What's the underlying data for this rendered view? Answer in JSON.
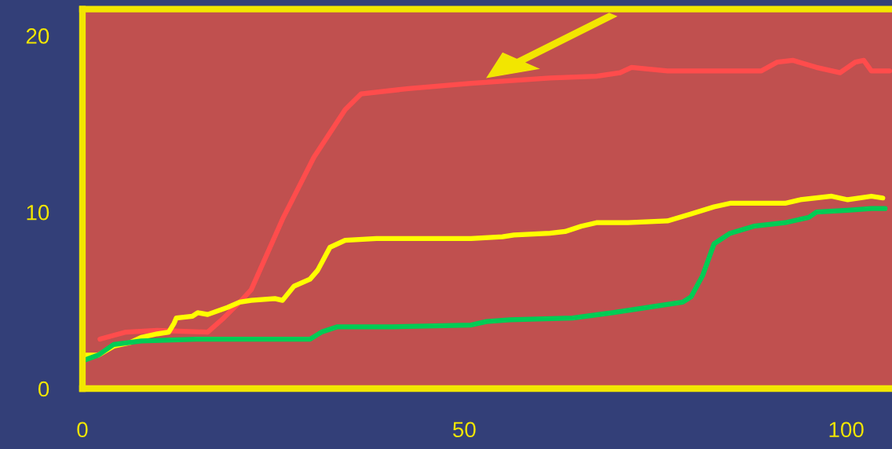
{
  "chart_data": {
    "type": "line",
    "xlim": [
      0,
      106
    ],
    "ylim": [
      0,
      21.5
    ],
    "xticks": [
      0,
      50,
      100
    ],
    "yticks": [
      0,
      10,
      20
    ],
    "grid": false,
    "legend": false,
    "marker": "none",
    "line_style": "solid",
    "series": [
      {
        "color": "#ff4c4c",
        "x": [
          2.3,
          5.7,
          9.8,
          16.4,
          18.5,
          20.6,
          22.1,
          26.2,
          30.3,
          34.4,
          36.5,
          42.7,
          50.9,
          61.2,
          67.3,
          70.4,
          71.9,
          76.6,
          88.9,
          91.0,
          93.0,
          96.1,
          99.2,
          101.2,
          102.3,
          103.3,
          105.7
        ],
        "values": [
          2.8,
          3.2,
          3.3,
          3.2,
          4.0,
          4.9,
          5.6,
          9.6,
          13.1,
          15.8,
          16.7,
          17.0,
          17.3,
          17.6,
          17.7,
          17.9,
          18.2,
          18.0,
          18.0,
          18.5,
          18.6,
          18.2,
          17.9,
          18.5,
          18.6,
          18.0,
          18.0
        ]
      },
      {
        "color": "#ffff00",
        "x": [
          0.2,
          2.1,
          4.1,
          6.2,
          7.7,
          9.8,
          11.3,
          12.0,
          12.3,
          14.4,
          15.1,
          16.4,
          19.0,
          20.6,
          22.1,
          25.2,
          26.2,
          27.7,
          29.8,
          30.8,
          32.4,
          34.4,
          38.5,
          50.9,
          55.0,
          56.5,
          61.2,
          63.2,
          65.3,
          67.3,
          71.4,
          76.6,
          79.7,
          82.7,
          84.8,
          92.0,
          94.0,
          98.1,
          100.2,
          103.3,
          104.8
        ],
        "values": [
          1.9,
          1.9,
          2.4,
          2.6,
          2.9,
          3.1,
          3.2,
          3.7,
          4.0,
          4.1,
          4.3,
          4.2,
          4.6,
          4.9,
          5.0,
          5.1,
          5.0,
          5.8,
          6.2,
          6.7,
          8.0,
          8.4,
          8.5,
          8.5,
          8.6,
          8.7,
          8.8,
          8.9,
          9.2,
          9.4,
          9.4,
          9.5,
          9.9,
          10.3,
          10.5,
          10.5,
          10.7,
          10.9,
          10.7,
          10.9,
          10.8
        ]
      },
      {
        "color": "#00cc55",
        "x": [
          0.2,
          2.1,
          4.1,
          7.7,
          14.9,
          29.8,
          31.3,
          33.4,
          40.6,
          50.9,
          52.9,
          56.0,
          64.2,
          69.4,
          78.6,
          79.7,
          81.2,
          82.7,
          84.8,
          87.9,
          92.0,
          95.1,
          96.1,
          100.2,
          103.3,
          105.1
        ],
        "values": [
          1.6,
          1.9,
          2.5,
          2.7,
          2.8,
          2.8,
          3.2,
          3.5,
          3.5,
          3.6,
          3.8,
          3.9,
          4.0,
          4.3,
          4.9,
          5.2,
          6.4,
          8.2,
          8.8,
          9.2,
          9.4,
          9.7,
          10.0,
          10.1,
          10.2,
          10.2
        ]
      }
    ]
  }
}
